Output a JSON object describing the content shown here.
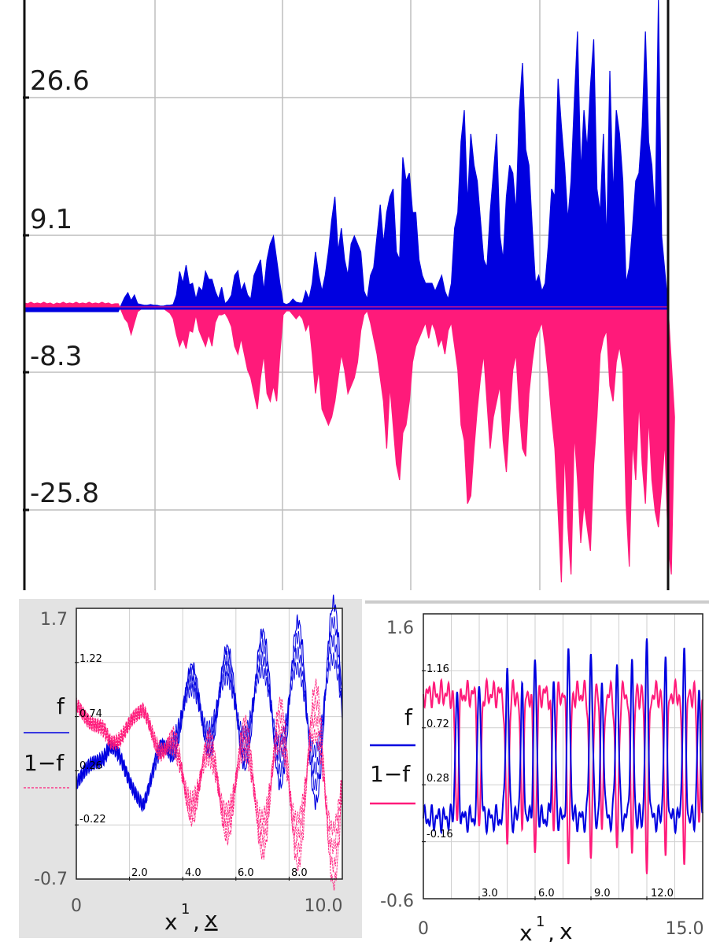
{
  "colors": {
    "f": "#0000e0",
    "one_minus_f": "#ff1a7a",
    "grid": "#bdbdbd"
  },
  "chart_data": [
    {
      "type": "area",
      "grid": true,
      "ylim": [
        -36,
        39
      ],
      "x_count": 200,
      "y_tick_labels": [
        "26.6",
        "9.1",
        "-8.3",
        "-25.8"
      ],
      "y_tick_values": [
        26.6,
        9.1,
        -8.3,
        -25.8
      ],
      "series": [
        {
          "color": "#0000e0",
          "values": [
            -0.6,
            -0.6,
            -0.6,
            -0.6,
            -0.6,
            -0.6,
            -0.6,
            -0.6,
            -0.6,
            -0.6,
            -0.6,
            -0.6,
            -0.6,
            -0.6,
            -0.6,
            -0.6,
            -0.6,
            -0.6,
            -0.6,
            -0.6,
            -0.6,
            -0.6,
            -0.6,
            -0.6,
            -0.6,
            -0.6,
            -0.6,
            -0.6,
            -0.6,
            -0.6,
            0.3,
            1.2,
            1.8,
            0.8,
            1.5,
            0.4,
            0.3,
            0.2,
            0.2,
            0.3,
            0.2,
            0.2,
            0.1,
            0.1,
            0.2,
            0.2,
            0.3,
            1.5,
            4.5,
            3.0,
            5.3,
            2.8,
            3.0,
            1.0,
            2.5,
            2.0,
            4.5,
            3.5,
            3.5,
            2.0,
            1.0,
            2.5,
            0.4,
            0.8,
            1.5,
            4.0,
            4.6,
            2.0,
            3.0,
            1.5,
            1.0,
            4.0,
            5.0,
            6.0,
            2.0,
            6.0,
            8.0,
            9.0,
            6.0,
            3.0,
            0.5,
            0.3,
            0.5,
            1.0,
            0.6,
            0.5,
            0.5,
            2.0,
            1.0,
            3.0,
            7.0,
            4.0,
            2.0,
            4.0,
            7.0,
            11.0,
            14.0,
            7.0,
            10.0,
            6.0,
            4.0,
            8.0,
            9.0,
            8.0,
            7.0,
            2.0,
            1.0,
            4.0,
            5.0,
            9.0,
            13.0,
            8.0,
            12.0,
            14.0,
            15.0,
            7.0,
            6.0,
            19.0,
            16.0,
            17.0,
            12.0,
            12.0,
            6.0,
            4.0,
            3.0,
            3.0,
            3.0,
            2.0,
            3.0,
            4.0,
            2.0,
            1.0,
            3.0,
            10.0,
            12.0,
            21.0,
            25.0,
            13.0,
            22.0,
            18.0,
            16.0,
            11.0,
            6.0,
            5.0,
            12.0,
            17.0,
            22.0,
            9.0,
            6.0,
            14.0,
            18.0,
            17.0,
            12.0,
            25.0,
            31.0,
            20.0,
            18.0,
            10.0,
            3.0,
            4.0,
            2.0,
            3.0,
            8.0,
            15.0,
            14.0,
            29.0,
            23.0,
            18.0,
            11.0,
            16.0,
            26.0,
            35.0,
            17.0,
            25.0,
            20.0,
            28.0,
            34.0,
            15.0,
            12.0,
            22.0,
            8.0,
            30.0,
            14.0,
            25.0,
            22.0,
            16.0,
            3.0,
            5.0,
            10.0,
            16.0,
            17.0,
            23.0,
            35.0,
            21.0,
            18.0,
            11.0,
            39.0,
            9.0
          ]
        },
        {
          "color": "#ff1a7a",
          "values": [
            0.5,
            0.4,
            0.6,
            0.4,
            0.5,
            0.4,
            0.6,
            0.4,
            0.5,
            0.3,
            0.5,
            0.4,
            0.6,
            0.4,
            0.5,
            0.4,
            0.6,
            0.4,
            0.5,
            0.4,
            0.6,
            0.4,
            0.5,
            0.4,
            0.6,
            0.4,
            0.5,
            0.3,
            0.4,
            0.4,
            -0.5,
            -1.5,
            -2.0,
            -3.5,
            -2.0,
            -0.6,
            -0.3,
            -0.2,
            -0.2,
            -0.3,
            -0.2,
            -0.2,
            -0.1,
            -0.2,
            -0.5,
            -0.8,
            -1.5,
            -3.5,
            -5.0,
            -4.0,
            -5.3,
            -3.0,
            -3.2,
            -1.0,
            -3.0,
            -4.0,
            -5.0,
            -3.5,
            -5.0,
            -2.0,
            -1.0,
            -1.0,
            -0.8,
            -1.5,
            -2.5,
            -5.0,
            -6.0,
            -4.0,
            -6.0,
            -8.0,
            -9.0,
            -11.0,
            -13.0,
            -9.0,
            -6.0,
            -11.0,
            -12.0,
            -10.0,
            -12.0,
            -6.0,
            -1.0,
            -0.5,
            -0.5,
            -1.0,
            -1.5,
            -1.0,
            -1.5,
            -3.0,
            -2.0,
            -6.0,
            -11.0,
            -8.0,
            -13.0,
            -14.0,
            -15.0,
            -14.0,
            -12.0,
            -9.0,
            -6.0,
            -8.0,
            -11.0,
            -10.0,
            -9.0,
            -7.0,
            -3.0,
            -1.0,
            -0.5,
            -2.0,
            -4.0,
            -6.0,
            -9.0,
            -12.0,
            -18.0,
            -10.0,
            -15.0,
            -20.0,
            -22.0,
            -16.0,
            -15.0,
            -12.0,
            -7.0,
            -5.0,
            -4.0,
            -3.0,
            -2.0,
            -4.0,
            -2.0,
            -3.0,
            -5.0,
            -4.0,
            -6.0,
            -3.0,
            -2.0,
            -5.0,
            -8.0,
            -15.0,
            -17.0,
            -25.0,
            -24.0,
            -18.0,
            -13.0,
            -9.0,
            -6.0,
            -12.0,
            -18.0,
            -14.0,
            -12.0,
            -10.0,
            -17.0,
            -21.0,
            -14.0,
            -8.0,
            -6.0,
            -13.0,
            -18.0,
            -19.0,
            -11.0,
            -7.0,
            -4.0,
            -3.0,
            -2.0,
            -5.0,
            -9.0,
            -14.0,
            -18.0,
            -26.0,
            -35.0,
            -18.0,
            -28.0,
            -34.0,
            -16.0,
            -22.0,
            -30.0,
            -25.0,
            -28.0,
            -31.0,
            -20.0,
            -14.0,
            -6.0,
            -4.0,
            -3.0,
            -10.0,
            -12.0,
            -7.0,
            -5.0,
            -8.0,
            -25.0,
            -33.0,
            -17.0,
            -22.0,
            -12.0,
            -20.0,
            -25.0,
            -14.0,
            -22.0,
            -26.0,
            -28.0,
            -23.0,
            -17.0,
            -30.0,
            -34.0,
            -14.0
          ]
        }
      ]
    },
    {
      "type": "line",
      "grid": true,
      "xlim": [
        0,
        10.0
      ],
      "ylim": [
        -0.7,
        1.7
      ],
      "x_range_labels": [
        "0",
        "10.0"
      ],
      "y_range_labels": [
        "1.7",
        "-0.7"
      ],
      "x_tick_labels": [
        "2.0",
        "4.0",
        "6.0",
        "8.0"
      ],
      "x_tick_values": [
        2.0,
        4.0,
        6.0,
        8.0
      ],
      "y_tick_labels": [
        "1.22",
        "0.74",
        "0.26",
        "-0.22"
      ],
      "y_tick_values": [
        1.22,
        0.74,
        0.26,
        -0.22
      ],
      "xlabel_base": "x",
      "xlabel_sup": "1",
      "xlabel_tail": ",",
      "xlabel_second": "x",
      "legend": [
        {
          "label": "f",
          "color": "#0000e0",
          "style": "solid"
        },
        {
          "label": "1−f",
          "color": "#ff1a7a",
          "style": "dashed"
        }
      ],
      "series": [
        {
          "color": "#0000e0",
          "envelope": {
            "center": [
              0.15,
              0.5,
              -0.05,
              0.75,
              0.85,
              0.85,
              0.85,
              0.8,
              0.85
            ],
            "amp": [
              0.0,
              0.12,
              0.0,
              0.35,
              0.45,
              0.55,
              0.7,
              0.8,
              0.95
            ]
          }
        },
        {
          "color": "#ff1a7a",
          "envelope": {
            "center": [
              0.85,
              0.5,
              0.8,
              0.25,
              0.15,
              0.15,
              0.15,
              0.2,
              0.15
            ],
            "amp": [
              0.0,
              0.12,
              0.0,
              0.35,
              0.45,
              0.55,
              0.7,
              0.8,
              0.95
            ]
          }
        }
      ]
    },
    {
      "type": "line",
      "grid": true,
      "xlim": [
        0,
        15.0
      ],
      "ylim": [
        -0.6,
        1.6
      ],
      "x_range_labels": [
        "0",
        "15.0"
      ],
      "y_range_labels": [
        "1.6",
        "-0.6"
      ],
      "x_tick_labels": [
        "3.0",
        "6.0",
        "9.0",
        "12.0"
      ],
      "x_tick_values": [
        3.0,
        6.0,
        9.0,
        12.0
      ],
      "y_tick_labels": [
        "1.16",
        "0.72",
        "0.28",
        "-0.16"
      ],
      "y_tick_values": [
        1.16,
        0.72,
        0.28,
        -0.16
      ],
      "xlabel_base": "x",
      "xlabel_sup": "1",
      "xlabel_tail": ",",
      "xlabel_second": "x",
      "legend": [
        {
          "label": "f",
          "color": "#0000e0",
          "style": "solid"
        },
        {
          "label": "1−f",
          "color": "#ff1a7a",
          "style": "solid"
        }
      ],
      "series": [
        {
          "color": "#0000e0",
          "peaks": [
            1.8,
            3.0,
            4.5,
            5.3,
            6.0,
            7.0,
            7.8,
            9.0,
            9.6,
            10.4,
            11.2,
            12.0,
            13.0,
            14.0,
            14.8
          ],
          "peak_heights": [
            1.0,
            1.15,
            1.2,
            1.0,
            1.25,
            1.1,
            1.3,
            1.35,
            1.05,
            1.25,
            1.2,
            1.35,
            1.2,
            1.3,
            1.0
          ]
        },
        {
          "color": "#ff1a7a"
        }
      ]
    }
  ]
}
